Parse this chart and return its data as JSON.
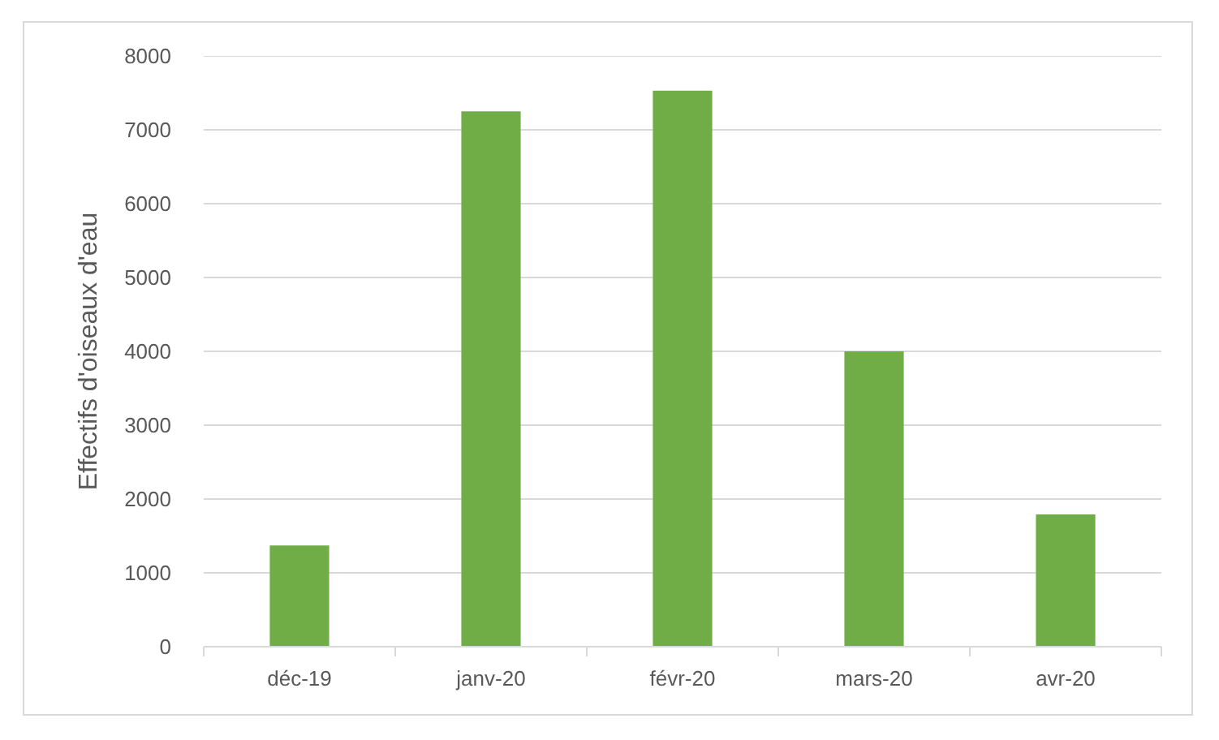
{
  "chart_data": {
    "type": "bar",
    "ylabel": "Effectifs d'oiseaux d'eau",
    "categories": [
      "déc-19",
      "janv-20",
      "févr-20",
      "mars-20",
      "avr-20"
    ],
    "values": [
      1370,
      7250,
      7530,
      4000,
      1790
    ],
    "color": "#70ad47",
    "ylim": [
      0,
      8000
    ],
    "yticks": [
      0,
      1000,
      2000,
      3000,
      4000,
      5000,
      6000,
      7000,
      8000
    ],
    "grid": "y"
  }
}
